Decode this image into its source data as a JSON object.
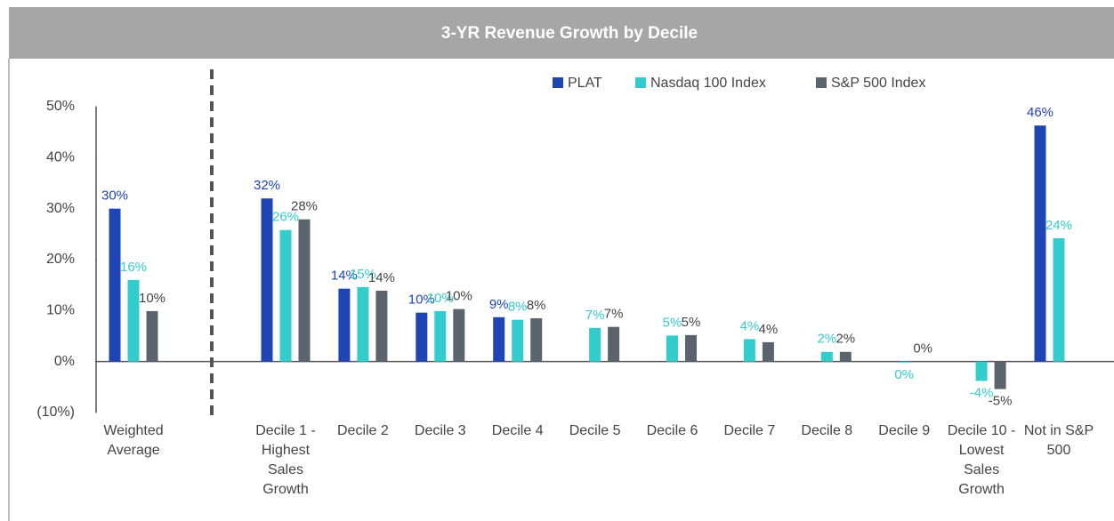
{
  "chart_data": {
    "type": "bar",
    "title": "3-YR Revenue Growth by Decile",
    "categories": [
      "Weighted Average",
      "Decile 1 - Highest Sales Growth",
      "Decile 2",
      "Decile 3",
      "Decile 4",
      "Decile 5",
      "Decile 6",
      "Decile 7",
      "Decile 8",
      "Decile 9",
      "Decile 10 -Lowest Sales Growth",
      "Not in S&P 500"
    ],
    "series": [
      {
        "name": "PLAT",
        "color": "#1f45b5",
        "values": [
          30,
          32,
          14.3,
          9.6,
          8.7,
          null,
          null,
          null,
          null,
          null,
          null,
          46.3
        ],
        "value_labels": [
          "30%",
          "32%",
          "14%",
          "10%",
          "9%",
          null,
          null,
          null,
          null,
          null,
          null,
          "46%"
        ]
      },
      {
        "name": "Nasdaq 100 Index",
        "color": "#33cccc",
        "values": [
          16,
          25.8,
          14.6,
          9.9,
          8.2,
          6.6,
          5.1,
          4.4,
          1.9,
          -0.2,
          -3.8,
          24.2
        ],
        "value_labels": [
          "16%",
          "26%",
          "15%",
          "10%",
          "8%",
          "7%",
          "5%",
          "4%",
          "2%",
          "0%",
          "-4%",
          "24%"
        ]
      },
      {
        "name": "S&P 500 Index",
        "color": "#5b636c",
        "values": [
          9.9,
          27.9,
          13.9,
          10.3,
          8.5,
          6.8,
          5.2,
          3.8,
          1.9,
          0,
          -5.4,
          null
        ],
        "value_labels": [
          "10%",
          "28%",
          "14%",
          "10%",
          "8%",
          "7%",
          "5%",
          "4%",
          "2%",
          "0%",
          "-5%",
          null
        ]
      }
    ],
    "ylim": [
      -10,
      50
    ],
    "yticks": [
      {
        "value": -10,
        "label": "(10%)"
      },
      {
        "value": 0,
        "label": "0%"
      },
      {
        "value": 10,
        "label": "10%"
      },
      {
        "value": 20,
        "label": "20%"
      },
      {
        "value": 30,
        "label": "30%"
      },
      {
        "value": 40,
        "label": "40%"
      },
      {
        "value": 50,
        "label": "50%"
      }
    ],
    "legend": "top"
  }
}
